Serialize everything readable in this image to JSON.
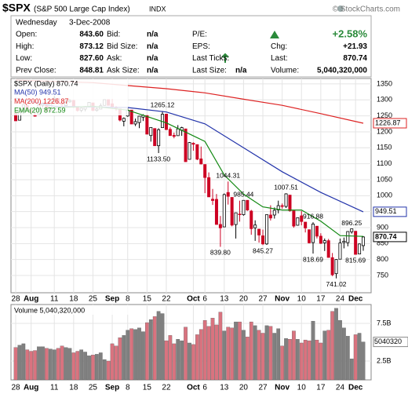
{
  "header": {
    "symbol": "$SPX",
    "name": "(S&P 500 Large Cap Index)",
    "exchange": "INDX",
    "source": "© StockCharts.com"
  },
  "quote": {
    "date_line": [
      "Wednesday",
      "3-Dec-2008"
    ],
    "rows": [
      [
        {
          "label": "Open:",
          "value": "843.60"
        },
        {
          "label": "Bid:",
          "value": "n/a"
        },
        {
          "label": "P/E:"
        },
        {
          "value": "+2.58%"
        }
      ],
      [
        {
          "label": "High:",
          "value": "873.12"
        },
        {
          "label": "Bid Size:",
          "value": "n/a"
        },
        {
          "label": "EPS:"
        },
        {
          "label": "Chg:",
          "value": "+21.93"
        }
      ],
      [
        {
          "label": "Low:",
          "value": "827.60"
        },
        {
          "label": "Ask:",
          "value": "n/a"
        },
        {
          "label": "Last Ticks:"
        },
        {
          "label": "Last:",
          "value": "870.74"
        }
      ],
      [
        {
          "label": "Prev Close:",
          "value": "848.81"
        },
        {
          "label": "Ask Size:",
          "value": "n/a"
        },
        {
          "label": "Last Size:",
          "value": "n/a"
        },
        {
          "label": "Volume:",
          "value": "5,040,320,000"
        }
      ]
    ]
  },
  "chart_data": [
    {
      "type": "candlestick",
      "name": "$SPX (Daily) 870.74",
      "legend": "upper-left",
      "grid": true,
      "up_color": "#000000",
      "down_color": "#cc0022",
      "categories": [
        "2008-07-28",
        "2008-07-29",
        "2008-07-30",
        "2008-07-31",
        "2008-08-01",
        "2008-08-04",
        "2008-08-05",
        "2008-08-06",
        "2008-08-07",
        "2008-08-08",
        "2008-08-11",
        "2008-08-12",
        "2008-08-13",
        "2008-08-14",
        "2008-08-15",
        "2008-08-18",
        "2008-08-19",
        "2008-08-20",
        "2008-08-21",
        "2008-08-22",
        "2008-08-25",
        "2008-08-26",
        "2008-08-27",
        "2008-08-28",
        "2008-08-29",
        "2008-09-02",
        "2008-09-03",
        "2008-09-04",
        "2008-09-05",
        "2008-09-08",
        "2008-09-09",
        "2008-09-10",
        "2008-09-11",
        "2008-09-12",
        "2008-09-15",
        "2008-09-16",
        "2008-09-17",
        "2008-09-18",
        "2008-09-19",
        "2008-09-22",
        "2008-09-23",
        "2008-09-24",
        "2008-09-25",
        "2008-09-26",
        "2008-09-29",
        "2008-09-30",
        "2008-10-01",
        "2008-10-02",
        "2008-10-03",
        "2008-10-06",
        "2008-10-07",
        "2008-10-08",
        "2008-10-09",
        "2008-10-10",
        "2008-10-13",
        "2008-10-14",
        "2008-10-15",
        "2008-10-16",
        "2008-10-17",
        "2008-10-20",
        "2008-10-21",
        "2008-10-22",
        "2008-10-23",
        "2008-10-24",
        "2008-10-27",
        "2008-10-28",
        "2008-10-29",
        "2008-10-30",
        "2008-10-31",
        "2008-11-03",
        "2008-11-04",
        "2008-11-05",
        "2008-11-06",
        "2008-11-07",
        "2008-11-10",
        "2008-11-11",
        "2008-11-12",
        "2008-11-13",
        "2008-11-14",
        "2008-11-17",
        "2008-11-18",
        "2008-11-19",
        "2008-11-20",
        "2008-11-21",
        "2008-11-24",
        "2008-11-25",
        "2008-11-26",
        "2008-11-28",
        "2008-12-01",
        "2008-12-02",
        "2008-12-03"
      ],
      "open": [
        1257.8,
        1236.4,
        1264.5,
        1281.4,
        1269.4,
        1253.3,
        1254.9,
        1283.0,
        1286.5,
        1266.3,
        1294.4,
        1304.8,
        1288.6,
        1282.1,
        1293.9,
        1298.1,
        1276.7,
        1267.3,
        1271.1,
        1277.6,
        1290.5,
        1267.0,
        1271.3,
        1282.8,
        1300.7,
        1287.8,
        1276.9,
        1271.8,
        1233.2,
        1249.5,
        1267.98,
        1224.5,
        1229,
        1245.9,
        1250.9,
        1188.3,
        1210.3,
        1156.4,
        1213.1,
        1255.4,
        1207.6,
        1188.8,
        1187.9,
        1204.5,
        1209.1,
        1113.8,
        1164.2,
        1160.0,
        1115.2,
        1097.6,
        1056.5,
        988.9,
        988.4,
        909.9,
        902.3,
        1009.97,
        994.6,
        909.5,
        942.3,
        940.5,
        985.5,
        951.7,
        899.4,
        895.1,
        874.3,
        848.9,
        939.4,
        939.4,
        955.4,
        968.7,
        966.3,
        1001.8,
        952.4,
        907.4,
        936.8,
        917.2,
        893.4,
        853.1,
        904.4,
        873.2,
        852.3,
        859.0,
        805.9,
        755.8,
        801.2,
        853.4,
        852.9,
        886.9,
        888.6,
        817.4,
        843.6
      ],
      "high": [
        1260.1,
        1263.2,
        1284.9,
        1284.8,
        1270.5,
        1260.5,
        1284.9,
        1291.7,
        1286.5,
        1297.9,
        1313.2,
        1304.8,
        1294.0,
        1300.7,
        1302.0,
        1300.2,
        1276.7,
        1276.0,
        1281.0,
        1293.2,
        1290.5,
        1275.8,
        1288.9,
        1300.9,
        1301.5,
        1303.0,
        1280.6,
        1271.8,
        1244.9,
        1274.4,
        1268.7,
        1241.5,
        1249.9,
        1255.1,
        1250.9,
        1214.8,
        1210.3,
        1211.1,
        1265.12,
        1255.4,
        1214.0,
        1197.4,
        1221.0,
        1215.8,
        1209.1,
        1168.0,
        1167.0,
        1160.0,
        1153.8,
        1097.6,
        1072.9,
        1021.1,
        1005.3,
        936.4,
        1006.9,
        1044.31,
        994.6,
        947.0,
        984.4,
        985.44,
        985.6,
        955.5,
        922.8,
        896.1,
        893.8,
        940.6,
        969.97,
        963.2,
        984.4,
        975.5,
        1007.51,
        1001.8,
        952.4,
        931.7,
        951.9,
        917.2,
        893.4,
        916.88,
        904.4,
        882.3,
        865.9,
        864.6,
        820.5,
        801.4,
        865.6,
        868.9,
        888.8,
        896.25,
        888.6,
        850.5,
        873.12
      ],
      "low": [
        1234.4,
        1236.4,
        1255.7,
        1265.1,
        1254.5,
        1247.5,
        1254.9,
        1276.0,
        1264.4,
        1261.1,
        1292.8,
        1285.6,
        1274.9,
        1276.8,
        1290.7,
        1274.5,
        1263.1,
        1261.2,
        1264.0,
        1277.6,
        1264.9,
        1263.2,
        1271.1,
        1282.1,
        1282.3,
        1272.2,
        1265.6,
        1232.8,
        1217.2,
        1247.1,
        1224.5,
        1217.9,
        1211.5,
        1233.8,
        1192.7,
        1169.3,
        1155.9,
        1133.5,
        1213.1,
        1205.6,
        1187.8,
        1179.8,
        1187.9,
        1187.5,
        1106.4,
        1113.8,
        1140.8,
        1111.3,
        1098.1,
        1007.97,
        996.2,
        970.97,
        909.2,
        839.8,
        902.3,
        972.1,
        903.9,
        865.8,
        918.7,
        937.4,
        952.5,
        877.6,
        858.4,
        852.9,
        845.27,
        845.8,
        922.3,
        928.3,
        944.6,
        958.8,
        961.5,
        949.9,
        899.7,
        906.1,
        907.2,
        884.9,
        850.5,
        818.69,
        866.1,
        848.98,
        826.8,
        806.2,
        747.8,
        741.02,
        801.2,
        834.99,
        841.4,
        881.2,
        815.69,
        817.4,
        827.6
      ],
      "close": [
        1234.4,
        1263.2,
        1284.3,
        1267.4,
        1260.3,
        1249.0,
        1284.9,
        1289.2,
        1266.1,
        1296.3,
        1305.3,
        1289.6,
        1285.8,
        1292.9,
        1298.2,
        1278.6,
        1266.7,
        1274.5,
        1277.7,
        1292.2,
        1266.8,
        1271.5,
        1281.7,
        1300.7,
        1282.8,
        1277.6,
        1274.98,
        1236.83,
        1242.31,
        1267.79,
        1224.51,
        1232.04,
        1249.05,
        1251.7,
        1192.7,
        1213.6,
        1156.39,
        1206.51,
        1255.08,
        1207.09,
        1188.22,
        1185.87,
        1209.18,
        1213.27,
        1106.42,
        1166.36,
        1161.06,
        1114.28,
        1099.23,
        1056.89,
        996.23,
        984.94,
        909.92,
        899.22,
        1003.35,
        998.01,
        907.84,
        946.43,
        940.55,
        985.4,
        955.05,
        896.78,
        908.11,
        876.77,
        848.92,
        940.51,
        930.09,
        954.09,
        968.75,
        966.3,
        1005.75,
        952.77,
        904.88,
        930.99,
        919.21,
        898.95,
        852.3,
        911.29,
        873.29,
        850.75,
        859.12,
        806.58,
        752.44,
        800.03,
        851.81,
        857.39,
        887.68,
        896.24,
        816.21,
        848.81,
        870.74
      ],
      "series": [
        {
          "name": "MA(50) 949.51",
          "color": "#2233aa",
          "show_tag": true,
          "x": [
            "2008-07-28",
            "2008-08-11",
            "2008-08-25",
            "2008-09-08",
            "2008-09-22",
            "2008-10-06",
            "2008-10-20",
            "2008-11-03",
            "2008-11-17",
            "2008-12-03"
          ],
          "values": [
            1305,
            1280,
            1278,
            1276,
            1262,
            1225,
            1150,
            1075,
            1010,
            949.51
          ]
        },
        {
          "name": "MA(200) 1226.87",
          "color": "#dd2222",
          "show_tag": true,
          "x": [
            "2008-07-28",
            "2008-08-11",
            "2008-08-25",
            "2008-09-08",
            "2008-09-22",
            "2008-10-06",
            "2008-10-20",
            "2008-11-03",
            "2008-11-17",
            "2008-12-03"
          ],
          "values": [
            1362,
            1358,
            1354,
            1345,
            1335,
            1322,
            1302,
            1283,
            1257,
            1226.87
          ]
        },
        {
          "name": "EMA(20) 872.59",
          "color": "#118811",
          "show_tag": false,
          "x": [
            "2008-07-28",
            "2008-08-11",
            "2008-08-25",
            "2008-09-08",
            "2008-09-22",
            "2008-10-06",
            "2008-10-13",
            "2008-10-20",
            "2008-10-27",
            "2008-11-03",
            "2008-11-10",
            "2008-11-17",
            "2008-11-24",
            "2008-12-03"
          ],
          "values": [
            1265,
            1275,
            1280,
            1268,
            1228,
            1170,
            1065,
            1005,
            965,
            955,
            955,
            920,
            875,
            872.59
          ]
        }
      ],
      "annotations": [
        {
          "x": "2008-09-19",
          "value": 1265.12
        },
        {
          "x": "2008-09-18",
          "value": 1133.5,
          "label": "1133.50"
        },
        {
          "x": "2008-10-14",
          "value": 1044.31
        },
        {
          "x": "2008-10-20",
          "value": 985.44
        },
        {
          "x": "2008-11-04",
          "value": 1007.51
        },
        {
          "x": "2008-11-13",
          "value": 916.88
        },
        {
          "x": "2008-11-28",
          "value": 896.25
        },
        {
          "x": "2008-10-10",
          "value": 839.8,
          "label": "839.80"
        },
        {
          "x": "2008-10-27",
          "value": 845.27
        },
        {
          "x": "2008-11-13",
          "value": 818.69
        },
        {
          "x": "2008-12-01",
          "value": 815.69
        },
        {
          "x": "2008-11-21",
          "value": 741.02
        }
      ],
      "ylim": [
        696,
        1367
      ],
      "yticks": [
        750,
        800,
        850,
        900,
        950,
        1000,
        1050,
        1100,
        1150,
        1200,
        1250,
        1300,
        1350
      ],
      "xticks": [
        {
          "value": "2008-07-28",
          "label": "28"
        },
        {
          "value": "2008-08-01",
          "label": "Aug"
        },
        {
          "value": "2008-08-11",
          "label": "11"
        },
        {
          "value": "2008-08-18",
          "label": "18"
        },
        {
          "value": "2008-08-25",
          "label": "25"
        },
        {
          "value": "2008-09-02",
          "label": "Sep"
        },
        {
          "value": "2008-09-08",
          "label": "8"
        },
        {
          "value": "2008-09-15",
          "label": "15"
        },
        {
          "value": "2008-09-22",
          "label": "22"
        },
        {
          "value": "2008-10-01",
          "label": "Oct"
        },
        {
          "value": "2008-10-06",
          "label": "6"
        },
        {
          "value": "2008-10-13",
          "label": "13"
        },
        {
          "value": "2008-10-20",
          "label": "20"
        },
        {
          "value": "2008-10-27",
          "label": "27"
        },
        {
          "value": "2008-11-03",
          "label": "Nov"
        },
        {
          "value": "2008-11-10",
          "label": "10"
        },
        {
          "value": "2008-11-17",
          "label": "17"
        },
        {
          "value": "2008-11-24",
          "label": "24"
        },
        {
          "value": "2008-12-01",
          "label": "Dec"
        }
      ]
    },
    {
      "type": "bar",
      "name": "Volume 5,040,320,000",
      "tag": "5040320",
      "up_color": "#808080",
      "down_color": "#d9737f",
      "grid": true,
      "values": [
        4300000000.0,
        4600000000.0,
        4800000000.0,
        4000000000.0,
        3800000000.0,
        3900000000.0,
        4400000000.0,
        4400000000.0,
        4200000000.0,
        4100000000.0,
        4000000000.0,
        4200000000.0,
        4500000000.0,
        4300000000.0,
        4200000000.0,
        3600000000.0,
        3800000000.0,
        4000000000.0,
        3700000000.0,
        3200000000.0,
        3300000000.0,
        3400000000.0,
        3600000000.0,
        2700000000.0,
        2500000000.0,
        4800000000.0,
        4500000000.0,
        5600000000.0,
        5900000000.0,
        6600000000.0,
        6800000000.0,
        6700000000.0,
        6900000000.0,
        6400000000.0,
        7600000000.0,
        8000000000.0,
        8400000000.0,
        9100000000.0,
        8800000000.0,
        5200000000.0,
        5900000000.0,
        4800000000.0,
        5400000000.0,
        5200000000.0,
        7000000000.0,
        4900000000.0,
        4700000000.0,
        6000000000.0,
        6700000000.0,
        7900000000.0,
        7100000000.0,
        8200000000.0,
        7300000000.0,
        9000000000.0,
        6500000000.0,
        7000000000.0,
        6900000000.0,
        7700000000.0,
        7700000000.0,
        6600000000.0,
        5700000000.0,
        7700000000.0,
        7200000000.0,
        6600000000.0,
        6200000000.0,
        7200000000.0,
        7100000000.0,
        6200000000.0,
        6800000000.0,
        4500000000.0,
        5500000000.0,
        5400000000.0,
        6500000000.0,
        5400000000.0,
        4900000000.0,
        5300000000.0,
        5200000000.0,
        7800000000.0,
        5300000000.0,
        4900000000.0,
        6500000000.0,
        6600000000.0,
        9100000000.0,
        9500000000.0,
        7900000000.0,
        6900000000.0,
        5800000000.0,
        2800000000.0,
        6000000000.0,
        6200000000.0,
        5040320000.0
      ],
      "ylim": [
        0,
        10000000000.0
      ],
      "yticks": [
        {
          "value": 7500000000.0,
          "label": "7.5B"
        },
        {
          "value": 2500000000.0,
          "label": "2.5B"
        }
      ]
    }
  ]
}
